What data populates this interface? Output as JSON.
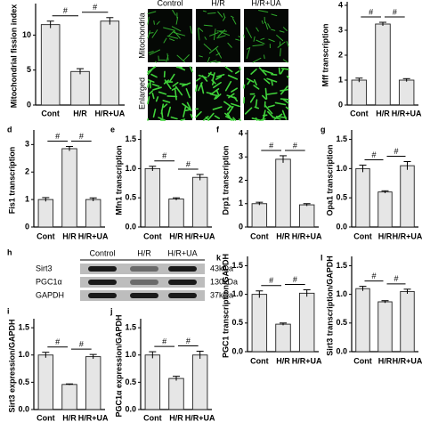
{
  "chart_data": [
    {
      "type": "bar",
      "ylabel": "Mitochondrial fission index",
      "categories": [
        "Cont",
        "H/R",
        "H/R+UA"
      ],
      "values": [
        11.5,
        4.8,
        12.0
      ],
      "errors": [
        0.5,
        0.4,
        0.5
      ],
      "ylim": [
        0,
        14
      ],
      "yticks": [
        0,
        5,
        10
      ],
      "annotations": [
        "#",
        "#"
      ],
      "color": "#e6e6e6",
      "point_color": "#3a6fd8"
    },
    {
      "type": "bar",
      "ylabel": "Mff transcription",
      "categories": [
        "Cont",
        "H/R",
        "H/R+UA"
      ],
      "values": [
        1.0,
        3.25,
        1.0
      ],
      "errors": [
        0.08,
        0.07,
        0.06
      ],
      "ylim": [
        0,
        4
      ],
      "yticks": [
        0,
        1,
        2,
        3,
        4
      ],
      "annotations": [
        "#",
        "#"
      ],
      "color": "#e6e6e6",
      "point_color": "#3a6fd8"
    },
    {
      "type": "bar",
      "panel": "d",
      "ylabel": "Fis1 transcription",
      "categories": [
        "Cont",
        "H/R",
        "H/R+UA"
      ],
      "values": [
        1.0,
        2.85,
        1.0
      ],
      "errors": [
        0.07,
        0.08,
        0.06
      ],
      "ylim": [
        0,
        3.4
      ],
      "yticks": [
        0,
        1,
        2,
        3
      ],
      "annotations": [
        "#",
        "#"
      ],
      "color": "#e6e6e6",
      "point_color": "#3a6fd8"
    },
    {
      "type": "bar",
      "panel": "e",
      "ylabel": "Mfn1 transcription",
      "categories": [
        "Cont",
        "H/R",
        "H/R+UA"
      ],
      "values": [
        1.0,
        0.48,
        0.85
      ],
      "errors": [
        0.04,
        0.02,
        0.05
      ],
      "ylim": [
        0,
        1.6
      ],
      "yticks": [
        {
          "value": 0,
          "label": "0.0"
        },
        0.5,
        {
          "value": 1,
          "label": "1.0"
        },
        1.5
      ],
      "annotations": [
        "#",
        "#"
      ],
      "color": "#e6e6e6",
      "point_color": "#3a6fd8"
    },
    {
      "type": "bar",
      "panel": "f",
      "ylabel": "Drp1 transcription",
      "categories": [
        "Cont",
        "H/R",
        "H/R+UA"
      ],
      "values": [
        1.0,
        2.9,
        0.95
      ],
      "errors": [
        0.06,
        0.15,
        0.05
      ],
      "ylim": [
        0,
        4
      ],
      "yticks": [
        0,
        1,
        2,
        3,
        4
      ],
      "annotations": [
        "#",
        "#"
      ],
      "color": "#e6e6e6",
      "point_color": "#3a6fd8"
    },
    {
      "type": "bar",
      "panel": "g",
      "ylabel": "Opa1 transcription",
      "categories": [
        "Cont",
        "H/R",
        "H/R+UA"
      ],
      "values": [
        1.0,
        0.6,
        1.05
      ],
      "errors": [
        0.06,
        0.02,
        0.07
      ],
      "ylim": [
        0,
        1.6
      ],
      "yticks": [
        {
          "value": 0,
          "label": "0.0"
        },
        0.5,
        {
          "value": 1,
          "label": "1.0"
        },
        1.5
      ],
      "annotations": [
        "#",
        "#"
      ],
      "color": "#e6e6e6",
      "point_color": "#3a6fd8"
    },
    {
      "type": "bar",
      "panel": "k",
      "ylabel": "PGC1 transcription/GAPDH",
      "categories": [
        "Cont",
        "H/R",
        "H/R+UA"
      ],
      "values": [
        1.0,
        0.48,
        1.02
      ],
      "errors": [
        0.06,
        0.02,
        0.06
      ],
      "ylim": [
        0,
        1.6
      ],
      "yticks": [
        {
          "value": 0,
          "label": "0.0"
        },
        0.5,
        {
          "value": 1,
          "label": "1.0"
        },
        1.5
      ],
      "annotations": [
        "#",
        "#"
      ],
      "color": "#e6e6e6",
      "point_color": "#3a6fd8"
    },
    {
      "type": "bar",
      "panel": "l",
      "ylabel": "Sirt3 transcription/GAPDH",
      "categories": [
        "Cont",
        "H/R",
        "H/R+UA"
      ],
      "values": [
        1.1,
        0.87,
        1.05
      ],
      "errors": [
        0.04,
        0.02,
        0.04
      ],
      "ylim": [
        0,
        1.6
      ],
      "yticks": [
        {
          "value": 0,
          "label": "0.0"
        },
        0.5,
        {
          "value": 1,
          "label": "1.0"
        },
        1.5
      ],
      "annotations": [
        "#",
        "#"
      ],
      "color": "#e6e6e6",
      "point_color": "#3a6fd8"
    },
    {
      "type": "bar",
      "panel": "i",
      "ylabel": "Sirt3 expression/GAPDH",
      "categories": [
        "Cont",
        "H/R",
        "H/R+UA"
      ],
      "values": [
        1.0,
        0.46,
        0.97
      ],
      "errors": [
        0.05,
        0.01,
        0.04
      ],
      "ylim": [
        0,
        1.6
      ],
      "yticks": [
        {
          "value": 0,
          "label": "0.0"
        },
        0.5,
        {
          "value": 1,
          "label": "1.0"
        },
        1.5
      ],
      "annotations": [
        "#",
        "#"
      ],
      "color": "#e6e6e6",
      "point_color": "#3a6fd8"
    },
    {
      "type": "bar",
      "panel": "j",
      "ylabel": "PGC1α expression/GAPDH",
      "categories": [
        "Cont",
        "H/R",
        "H/R+UA"
      ],
      "values": [
        1.0,
        0.57,
        1.0
      ],
      "errors": [
        0.06,
        0.04,
        0.07
      ],
      "ylim": [
        0,
        1.6
      ],
      "yticks": [
        {
          "value": 0,
          "label": "0.0"
        },
        0.5,
        {
          "value": 1,
          "label": "1.0"
        },
        1.5
      ],
      "annotations": [
        "#",
        "#"
      ],
      "color": "#e6e6e6",
      "point_color": "#3a6fd8"
    }
  ],
  "micrographs": {
    "columns": [
      "Control",
      "H/R",
      "H/R+UA"
    ],
    "rows": [
      "Mitochondria",
      "Enlarged"
    ]
  },
  "blot": {
    "panel": "h",
    "columns": [
      "Control",
      "H/R",
      "H/R+UA"
    ],
    "bands": [
      {
        "name": "Sirt3",
        "size": "43kDa"
      },
      {
        "name": "PGC1α",
        "size": "130kDa"
      },
      {
        "name": "GAPDH",
        "size": "37kDa"
      }
    ]
  }
}
